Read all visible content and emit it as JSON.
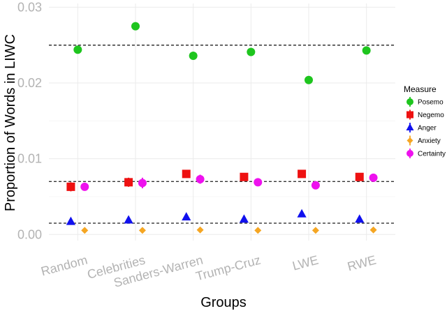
{
  "chart_data": {
    "type": "scatter",
    "title": "",
    "xlabel": "Groups",
    "ylabel": "Proportion of Words in LIWC",
    "ylim": [
      -0.0008,
      0.0305
    ],
    "yticks": [
      "0.00",
      "0.01",
      "0.02",
      "0.03"
    ],
    "ytick_values": [
      0.0,
      0.01,
      0.02,
      0.03
    ],
    "grid": true,
    "legend": {
      "title": "Measure",
      "placement": "right"
    },
    "categories": [
      "Random",
      "Celebrities",
      "Sanders-Warren",
      "Trump-Cruz",
      "LWE",
      "RWE"
    ],
    "series": [
      {
        "name": "Posemo",
        "color": "#1ec51e",
        "marker": "circle",
        "offset": 0.0,
        "values": [
          0.0244,
          0.0275,
          0.0236,
          0.0241,
          0.0204,
          0.0243
        ],
        "err": [
          0.0005,
          0.0005,
          0.0005,
          0.0005,
          0.0005,
          0.0004
        ]
      },
      {
        "name": "Negemo",
        "color": "#ee1111",
        "marker": "square",
        "offset": -0.12,
        "values": [
          0.0063,
          0.0069,
          0.008,
          0.0076,
          0.008,
          0.0076
        ],
        "err": [
          0.0006,
          0.0006,
          0.0005,
          0.0004,
          0.0004,
          0.0004
        ]
      },
      {
        "name": "Anger",
        "color": "#1010ee",
        "marker": "triangle",
        "offset": -0.12,
        "values": [
          0.0017,
          0.0019,
          0.0023,
          0.002,
          0.0027,
          0.002
        ],
        "err": [
          0.0003,
          0.0003,
          0.0003,
          0.0003,
          0.0003,
          0.0002
        ]
      },
      {
        "name": "Anxiety",
        "color": "#f5a623",
        "marker": "diamond",
        "offset": 0.12,
        "values": [
          0.00055,
          0.00055,
          0.0006,
          0.00055,
          0.00055,
          0.0006
        ],
        "err": [
          0.0001,
          0.0001,
          0.0001,
          0.0001,
          0.0001,
          0.0001
        ]
      },
      {
        "name": "Certainty",
        "color": "#ee11ee",
        "marker": "circle",
        "offset": 0.12,
        "values": [
          0.0063,
          0.0068,
          0.0073,
          0.0069,
          0.0065,
          0.0075
        ],
        "err": [
          0.0005,
          0.0007,
          0.0006,
          0.0005,
          0.0005,
          0.0004
        ]
      }
    ],
    "reference_lines": [
      0.025,
      0.007,
      0.0015
    ]
  }
}
